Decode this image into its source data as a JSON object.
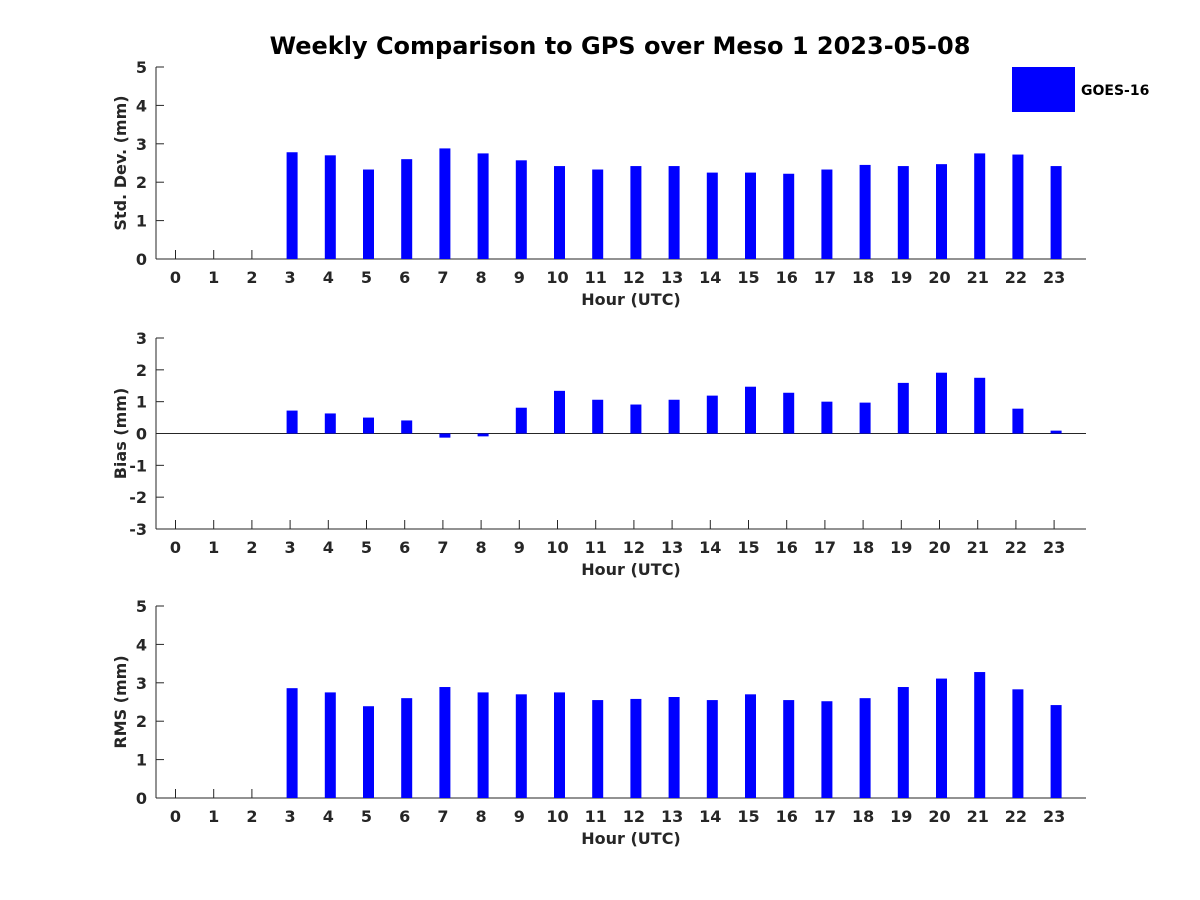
{
  "figure": {
    "title": "Weekly Comparison to GPS over Meso 1 2023-05-08",
    "legend_label": "GOES-16",
    "bar_color": "#0000ff"
  },
  "chart_data": [
    {
      "type": "bar",
      "series_name": "GOES-16",
      "xlabel": "Hour (UTC)",
      "ylabel": "Std. Dev. (mm)",
      "ylim": [
        0,
        5
      ],
      "yticks": [
        "0",
        "1",
        "2",
        "3",
        "4",
        "5"
      ],
      "categories": [
        "0",
        "1",
        "2",
        "3",
        "4",
        "5",
        "6",
        "7",
        "8",
        "9",
        "10",
        "11",
        "12",
        "13",
        "14",
        "15",
        "16",
        "17",
        "18",
        "19",
        "20",
        "21",
        "22",
        "23"
      ],
      "values": [
        null,
        null,
        null,
        2.78,
        2.7,
        2.33,
        2.6,
        2.88,
        2.75,
        2.57,
        2.42,
        2.33,
        2.42,
        2.42,
        2.25,
        2.25,
        2.22,
        2.33,
        2.45,
        2.42,
        2.47,
        2.75,
        2.72,
        2.42
      ]
    },
    {
      "type": "bar",
      "series_name": "GOES-16",
      "xlabel": "Hour (UTC)",
      "ylabel": "Bias (mm)",
      "ylim": [
        -3,
        3
      ],
      "yticks": [
        "-3",
        "-2",
        "-1",
        "0",
        "1",
        "2",
        "3"
      ],
      "categories": [
        "0",
        "1",
        "2",
        "3",
        "4",
        "5",
        "6",
        "7",
        "8",
        "9",
        "10",
        "11",
        "12",
        "13",
        "14",
        "15",
        "16",
        "17",
        "18",
        "19",
        "20",
        "21",
        "22",
        "23"
      ],
      "values": [
        null,
        null,
        null,
        0.72,
        0.63,
        0.5,
        0.41,
        -0.13,
        -0.09,
        0.81,
        1.34,
        1.06,
        0.91,
        1.06,
        1.19,
        1.47,
        1.28,
        1.0,
        0.97,
        1.59,
        1.91,
        1.75,
        0.78,
        0.09
      ]
    },
    {
      "type": "bar",
      "series_name": "GOES-16",
      "xlabel": "Hour (UTC)",
      "ylabel": "RMS (mm)",
      "ylim": [
        0,
        5
      ],
      "yticks": [
        "0",
        "1",
        "2",
        "3",
        "4",
        "5"
      ],
      "categories": [
        "0",
        "1",
        "2",
        "3",
        "4",
        "5",
        "6",
        "7",
        "8",
        "9",
        "10",
        "11",
        "12",
        "13",
        "14",
        "15",
        "16",
        "17",
        "18",
        "19",
        "20",
        "21",
        "22",
        "23"
      ],
      "values": [
        null,
        null,
        null,
        2.86,
        2.75,
        2.39,
        2.6,
        2.89,
        2.75,
        2.7,
        2.75,
        2.55,
        2.58,
        2.63,
        2.55,
        2.7,
        2.55,
        2.52,
        2.6,
        2.89,
        3.11,
        3.28,
        2.83,
        2.42
      ]
    }
  ]
}
